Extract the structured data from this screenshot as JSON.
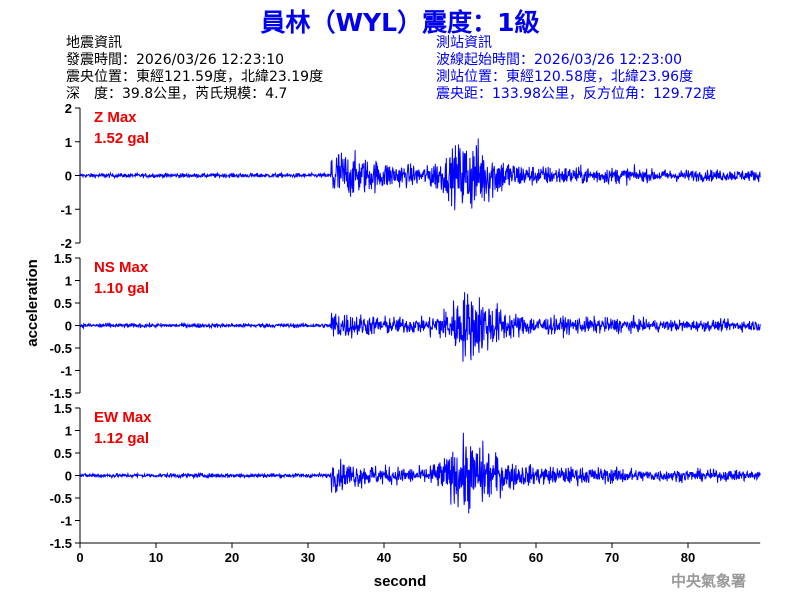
{
  "title": "員林（WYL）震度：1級",
  "earthquake_info": {
    "heading": "地震資訊",
    "origin_time": "發震時間：2026/03/26 12:23:10",
    "epicenter": "震央位置：東經121.59度，北緯23.19度",
    "depth_magnitude": "深　度：39.8公里，芮氏規模：4.7"
  },
  "station_info": {
    "heading": "測站資訊",
    "waveform_start": "波線起始時間：2026/03/26 12:23:00",
    "station_location": "測站位置：東經120.58度，北緯23.96度",
    "distance_azimuth": "震央距：133.98公里，反方位角：129.72度"
  },
  "organization": "中央氣象署",
  "colors": {
    "title": "#0000ee",
    "trace": "#0000ff",
    "max_label": "#ee0000",
    "station_info": "#0000ee"
  },
  "chart_data": {
    "type": "line",
    "xlabel": "second",
    "ylabel": "acceleration",
    "xlim": [
      0,
      89.5
    ],
    "xticks": [
      "0",
      "10",
      "20",
      "30",
      "40",
      "50",
      "60",
      "70",
      "80"
    ],
    "grid": false,
    "panels": [
      {
        "component": "Z",
        "max_label": "Z Max",
        "max_value": "1.52 gal",
        "ylim": [
          -2,
          2
        ],
        "yticks": [
          "2",
          "1",
          "0",
          "-1",
          "-2"
        ],
        "p_arrival_s": 33,
        "s_arrival_s": 50,
        "peak": 1.52
      },
      {
        "component": "NS",
        "max_label": "NS Max",
        "max_value": "1.10 gal",
        "ylim": [
          -1.5,
          1.5
        ],
        "yticks": [
          "1.5",
          "1",
          "0.5",
          "0",
          "-0.5",
          "-1",
          "-1.5"
        ],
        "p_arrival_s": 33,
        "s_arrival_s": 50,
        "peak": 1.1
      },
      {
        "component": "EW",
        "max_label": "EW Max",
        "max_value": "1.12 gal",
        "ylim": [
          -1.5,
          1.5
        ],
        "yticks": [
          "1.5",
          "1",
          "0.5",
          "0",
          "-0.5",
          "-1",
          "-1.5"
        ],
        "p_arrival_s": 33,
        "s_arrival_s": 50,
        "peak": 1.12
      }
    ]
  }
}
